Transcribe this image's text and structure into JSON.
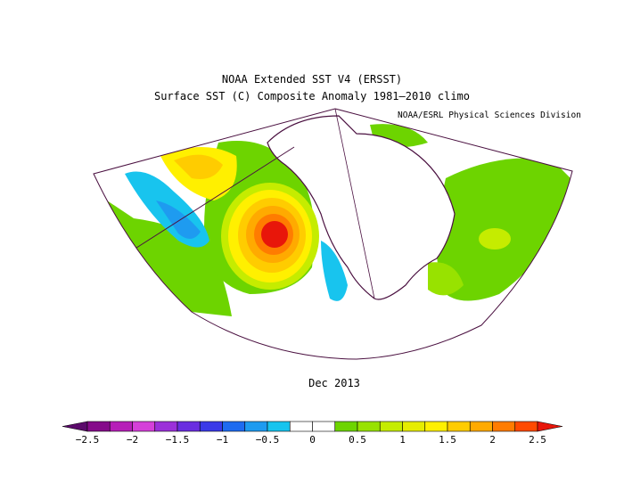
{
  "header": {
    "title": "NOAA Extended SST V4 (ERSST)",
    "subtitle": "Surface SST (C) Composite Anomaly 1981–2010 climo",
    "credit": "NOAA/ESRL Physical Sciences Division"
  },
  "map": {
    "date_label": "Dec 2013",
    "projection": "conic, North Pacific / North America / North Atlantic",
    "anomalies": [
      {
        "region": "Northeast Pacific (warm blob)",
        "value": 2.5
      },
      {
        "region": "Central North Pacific",
        "value": 1.5
      },
      {
        "region": "West-central North Pacific",
        "value": -0.5
      },
      {
        "region": "Baja California coast",
        "value": -0.5
      },
      {
        "region": "Western North Atlantic",
        "value": 0.5
      },
      {
        "region": "Gulf of Mexico",
        "value": 0.5
      }
    ]
  },
  "colorbar": {
    "colors": [
      "#5b0a6b",
      "#850a8a",
      "#b61fb8",
      "#d540d9",
      "#9b30d9",
      "#6a2ee0",
      "#3a3ae8",
      "#1e6bf0",
      "#1e9bf0",
      "#18c4ee",
      "#ffffff",
      "#ffffff",
      "#6dd400",
      "#98e200",
      "#c5ec00",
      "#e6ec00",
      "#fff000",
      "#ffcc00",
      "#ffaa00",
      "#ff7c00",
      "#ff4a00",
      "#e8160a"
    ],
    "ticks": [
      "−2.5",
      "−2",
      "−1.5",
      "−1",
      "−0.5",
      "0",
      "0.5",
      "1",
      "1.5",
      "2",
      "2.5"
    ]
  }
}
